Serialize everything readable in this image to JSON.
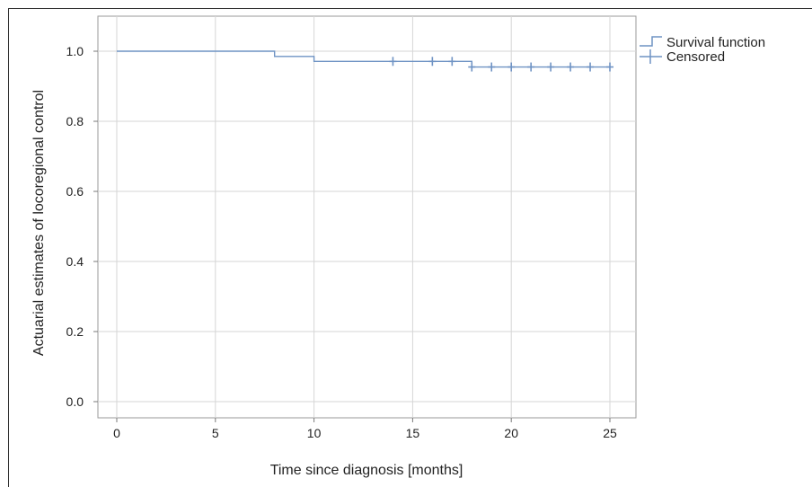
{
  "chart_data": {
    "type": "line",
    "title": "",
    "xlabel": "Time since diagnosis [months]",
    "ylabel": "Actuarial estimates of locoregional control",
    "xlim": [
      -1,
      26
    ],
    "ylim": [
      -0.05,
      1.05
    ],
    "x_ticks": [
      0,
      5,
      10,
      15,
      20,
      25
    ],
    "y_ticks": [
      0.0,
      0.2,
      0.4,
      0.6,
      0.8,
      1.0
    ],
    "x_tick_labels": [
      "0",
      "5",
      "10",
      "15",
      "20",
      "25"
    ],
    "y_tick_labels": [
      "0.0",
      "0.2",
      "0.4",
      "0.6",
      "0.8",
      "1.0"
    ],
    "grid": true,
    "legend_position": "top-right",
    "series": [
      {
        "name": "Survival function",
        "kind": "step",
        "color": "#6f93c4",
        "x": [
          0,
          8,
          10,
          18,
          25
        ],
        "y": [
          1.0,
          0.985,
          0.971,
          0.955,
          0.955
        ]
      },
      {
        "name": "Censored",
        "kind": "marker",
        "color": "#6f93c4",
        "x": [
          14,
          16,
          17,
          18,
          19,
          20,
          21,
          22,
          23,
          24,
          25
        ],
        "y": [
          0.971,
          0.971,
          0.971,
          0.955,
          0.955,
          0.955,
          0.955,
          0.955,
          0.955,
          0.955,
          0.955
        ]
      }
    ]
  }
}
